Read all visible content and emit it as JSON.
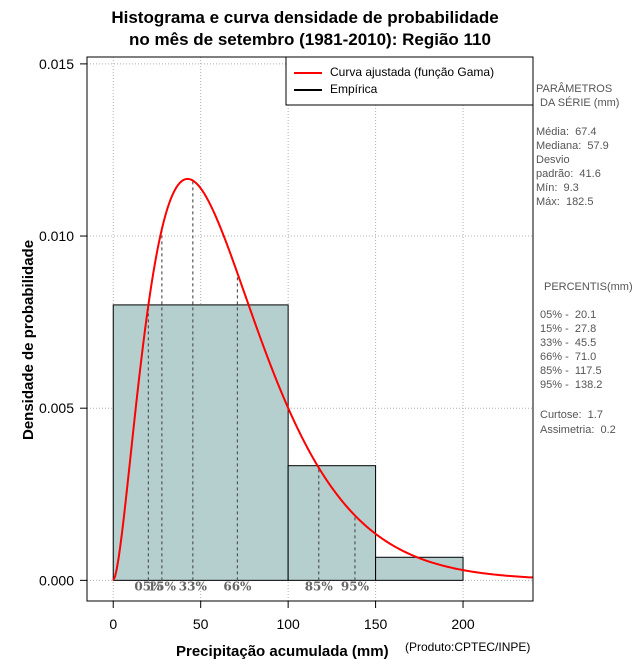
{
  "chart_data": {
    "type": "histogram",
    "title_line1": "Histograma e curva densidade de probabilidade",
    "title_line2": "no mês de setembro (1981-2010): Região 110",
    "xlabel": "Precipitação acumulada (mm)",
    "ylabel": "Densidade de probabilidade",
    "product_note": "(Produto:CPTEC/INPE)",
    "xlim": [
      -15,
      240
    ],
    "ylim": [
      -0.0006,
      0.0152
    ],
    "x_ticks": [
      0,
      50,
      100,
      150,
      200
    ],
    "x_tick_labels": [
      "0",
      "50",
      "100",
      "150",
      "200"
    ],
    "y_ticks": [
      0.0,
      0.005,
      0.01,
      0.015
    ],
    "y_tick_labels": [
      "0.000",
      "0.005",
      "0.010",
      "0.015"
    ],
    "bins": [
      {
        "start": 0,
        "end": 100,
        "density": 0.008
      },
      {
        "start": 100,
        "end": 150,
        "density": 0.00333
      },
      {
        "start": 150,
        "end": 200,
        "density": 0.00067
      }
    ],
    "gamma_fit": {
      "shape": 2.7,
      "scale": 25.0
    },
    "percentiles": [
      {
        "label": "05%",
        "value": 20.1
      },
      {
        "label": "15%",
        "value": 27.8
      },
      {
        "label": "33%",
        "value": 45.5
      },
      {
        "label": "66%",
        "value": 71.0
      },
      {
        "label": "85%",
        "value": 117.5
      },
      {
        "label": "95%",
        "value": 138.2
      }
    ],
    "legend": [
      {
        "label": "Curva ajustada (função Gama)",
        "color": "#ff0000"
      },
      {
        "label": "Empírica",
        "color": "#000000"
      }
    ],
    "colors": {
      "bar_fill": "#b5cfcf",
      "curve": "#ff0000",
      "grid": "#b0b0b0",
      "percentile_line": "#555555"
    }
  },
  "stats": {
    "params_header1": "PARÂMETROS",
    "params_header2": "DA SÉRIE (mm)",
    "media": "Média:  67.4",
    "mediana": "Mediana:  57.9",
    "desvio1": "Desvio",
    "desvio2": "padrão:  41.6",
    "min": "Mín:  9.3",
    "max": "Máx:  182.5",
    "percentis_header": "PERCENTIS(mm)",
    "p05": "05% -  20.1",
    "p15": "15% -  27.8",
    "p33": "33% -  45.5",
    "p66": "66% -  71.0",
    "p85": "85% -  117.5",
    "p95": "95% -  138.2",
    "curtose": "Curtose:  1.7",
    "assimetria": "Assimetria:  0.2"
  }
}
